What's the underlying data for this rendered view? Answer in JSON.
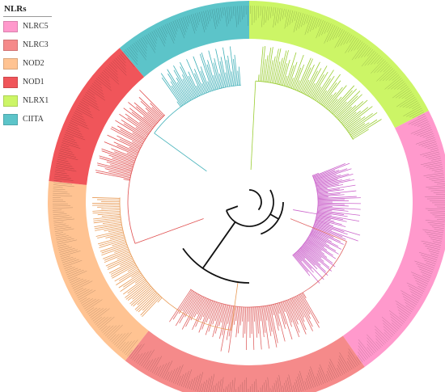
{
  "legend": {
    "title": "NLRs",
    "items": [
      {
        "label": "NLRC5",
        "color": "#ff99cc"
      },
      {
        "label": "NLRC3",
        "color": "#f58a8a"
      },
      {
        "label": "NOD2",
        "color": "#ffc392"
      },
      {
        "label": "NOD1",
        "color": "#f0555a"
      },
      {
        "label": "NLRX1",
        "color": "#ccf566"
      },
      {
        "label": "CIITA",
        "color": "#5cc4c9"
      }
    ]
  },
  "tree": {
    "layout": "circular",
    "clades": [
      {
        "name": "NLRX1",
        "ring_color": "#ccf566",
        "branch_color": "#9acd32"
      },
      {
        "name": "NLRC5",
        "ring_color": "#ff99cc",
        "branch_color": "#cc66cc"
      },
      {
        "name": "NLRC3",
        "ring_color": "#f58a8a",
        "branch_color": "#e06666"
      },
      {
        "name": "NOD2",
        "ring_color": "#ffc392",
        "branch_color": "#e89a55"
      },
      {
        "name": "NOD1",
        "ring_color": "#f0555a",
        "branch_color": "#e05050"
      },
      {
        "name": "CIITA",
        "ring_color": "#5cc4c9",
        "branch_color": "#40b0b8"
      }
    ],
    "backbone_color": "#111111"
  }
}
